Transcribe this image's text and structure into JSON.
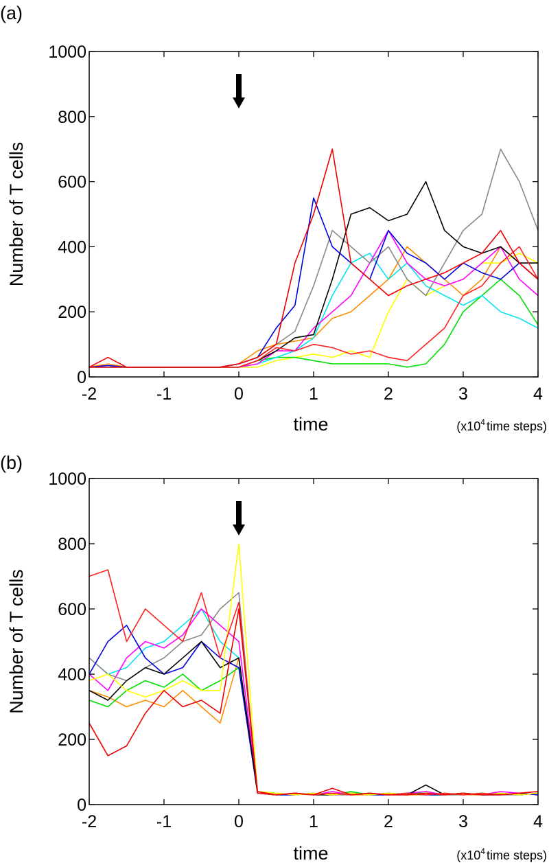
{
  "chart_data": [
    {
      "type": "line",
      "panel_label": "(a)",
      "xlabel": "time",
      "x_unit_prefix": "(x10",
      "x_unit_exp": "4",
      "x_unit_suffix": "time steps)",
      "ylabel": "Number of T cells",
      "xlim": [
        -2,
        4
      ],
      "ylim": [
        0,
        1000
      ],
      "xticks": [
        "-2",
        "-1",
        "0",
        "1",
        "2",
        "3",
        "4"
      ],
      "yticks": [
        "0",
        "200",
        "400",
        "600",
        "800",
        "1000"
      ],
      "arrow_at_x": 0,
      "grid": false,
      "x": [
        -2,
        -1.75,
        -1.5,
        -1.25,
        -1,
        -0.75,
        -0.5,
        -0.25,
        0,
        0.25,
        0.5,
        0.75,
        1,
        1.25,
        1.5,
        1.75,
        2,
        2.25,
        2.5,
        2.75,
        3,
        3.25,
        3.5,
        3.75,
        4
      ],
      "series": [
        {
          "color": "#ff8c00",
          "values": [
            30,
            40,
            30,
            30,
            30,
            30,
            30,
            30,
            40,
            80,
            100,
            110,
            120,
            180,
            200,
            250,
            300,
            400,
            350,
            300,
            250,
            300,
            400,
            350,
            300
          ]
        },
        {
          "color": "#ffff00",
          "values": [
            30,
            30,
            30,
            30,
            30,
            30,
            30,
            30,
            30,
            30,
            50,
            60,
            70,
            60,
            80,
            60,
            200,
            300,
            250,
            280,
            300,
            350,
            350,
            380,
            350
          ]
        },
        {
          "color": "#00dd00",
          "values": [
            30,
            30,
            30,
            30,
            30,
            30,
            30,
            30,
            30,
            50,
            60,
            60,
            50,
            40,
            40,
            40,
            40,
            30,
            40,
            100,
            200,
            250,
            300,
            250,
            160
          ]
        },
        {
          "color": "#00e5ee",
          "values": [
            30,
            30,
            30,
            30,
            30,
            30,
            30,
            30,
            30,
            40,
            60,
            80,
            120,
            250,
            350,
            380,
            300,
            350,
            280,
            250,
            220,
            250,
            200,
            180,
            150
          ]
        },
        {
          "color": "#ff00ff",
          "values": [
            30,
            30,
            30,
            30,
            30,
            30,
            30,
            30,
            30,
            40,
            80,
            80,
            150,
            200,
            250,
            350,
            450,
            350,
            300,
            280,
            300,
            350,
            400,
            300,
            250
          ]
        },
        {
          "color": "#888888",
          "values": [
            30,
            30,
            30,
            30,
            30,
            30,
            30,
            30,
            40,
            60,
            100,
            140,
            280,
            450,
            400,
            350,
            400,
            300,
            250,
            350,
            450,
            500,
            700,
            600,
            450
          ]
        },
        {
          "color": "#000000",
          "values": [
            30,
            30,
            30,
            30,
            30,
            30,
            30,
            30,
            30,
            50,
            80,
            120,
            130,
            300,
            500,
            520,
            480,
            500,
            600,
            450,
            400,
            380,
            400,
            350,
            350
          ]
        },
        {
          "color": "#0000dd",
          "values": [
            30,
            35,
            30,
            30,
            30,
            30,
            30,
            30,
            40,
            60,
            150,
            220,
            550,
            400,
            350,
            300,
            450,
            380,
            350,
            300,
            350,
            320,
            300,
            350,
            300
          ]
        },
        {
          "color": "#ff2020",
          "values": [
            30,
            30,
            30,
            30,
            30,
            30,
            30,
            30,
            30,
            50,
            90,
            80,
            100,
            90,
            70,
            80,
            60,
            50,
            100,
            150,
            250,
            280,
            350,
            400,
            300
          ]
        },
        {
          "color": "#ee0000",
          "values": [
            30,
            60,
            30,
            30,
            30,
            30,
            30,
            30,
            40,
            60,
            100,
            350,
            500,
            700,
            350,
            300,
            250,
            280,
            300,
            320,
            350,
            380,
            450,
            350,
            300
          ]
        }
      ]
    },
    {
      "type": "line",
      "panel_label": "(b)",
      "xlabel": "time",
      "x_unit_prefix": "(x10",
      "x_unit_exp": "4",
      "x_unit_suffix": "time steps)",
      "ylabel": "Number of T cells",
      "xlim": [
        -2,
        4
      ],
      "ylim": [
        0,
        1000
      ],
      "xticks": [
        "-2",
        "-1",
        "0",
        "1",
        "2",
        "3",
        "4"
      ],
      "yticks": [
        "0",
        "200",
        "400",
        "600",
        "800",
        "1000"
      ],
      "arrow_at_x": 0,
      "grid": false,
      "x": [
        -2,
        -1.75,
        -1.5,
        -1.25,
        -1,
        -0.75,
        -0.5,
        -0.25,
        0,
        0.25,
        0.5,
        0.75,
        1,
        1.25,
        1.5,
        1.75,
        2,
        2.25,
        2.5,
        2.75,
        3,
        3.25,
        3.5,
        3.75,
        4
      ],
      "series": [
        {
          "color": "#ff8c00",
          "values": [
            350,
            330,
            300,
            320,
            300,
            350,
            300,
            250,
            450,
            35,
            30,
            32,
            30,
            35,
            30,
            30,
            32,
            30,
            30,
            35,
            30,
            30,
            32,
            30,
            35
          ]
        },
        {
          "color": "#00dd00",
          "values": [
            320,
            300,
            350,
            380,
            360,
            400,
            350,
            380,
            420,
            40,
            35,
            30,
            35,
            30,
            40,
            30,
            35,
            30,
            40,
            30,
            35,
            30,
            35,
            30,
            35
          ]
        },
        {
          "color": "#00e5ee",
          "values": [
            450,
            400,
            420,
            480,
            500,
            550,
            600,
            500,
            450,
            35,
            30,
            35,
            30,
            30,
            35,
            30,
            30,
            35,
            30,
            30,
            35,
            30,
            30,
            35,
            30
          ]
        },
        {
          "color": "#ff00ff",
          "values": [
            400,
            350,
            450,
            500,
            480,
            520,
            600,
            550,
            500,
            40,
            30,
            35,
            30,
            40,
            30,
            35,
            30,
            35,
            40,
            30,
            35,
            30,
            40,
            35,
            30
          ]
        },
        {
          "color": "#888888",
          "values": [
            450,
            400,
            380,
            420,
            450,
            500,
            520,
            600,
            650,
            35,
            30,
            30,
            35,
            30,
            30,
            35,
            30,
            30,
            35,
            30,
            30,
            35,
            30,
            30,
            35
          ]
        },
        {
          "color": "#0000dd",
          "values": [
            400,
            500,
            550,
            450,
            400,
            420,
            500,
            450,
            420,
            35,
            30,
            30,
            35,
            30,
            35,
            30,
            30,
            35,
            30,
            30,
            35,
            30,
            30,
            35,
            30
          ]
        },
        {
          "color": "#000000",
          "values": [
            350,
            320,
            380,
            420,
            400,
            450,
            500,
            420,
            450,
            35,
            30,
            35,
            30,
            30,
            35,
            30,
            35,
            30,
            60,
            30,
            35,
            30,
            35,
            30,
            35
          ]
        },
        {
          "color": "#ffff00",
          "values": [
            380,
            400,
            350,
            330,
            350,
            380,
            350,
            350,
            800,
            40,
            35,
            30,
            35,
            30,
            35,
            30,
            35,
            30,
            35,
            30,
            35,
            30,
            35,
            30,
            35
          ]
        },
        {
          "color": "#ff2020",
          "values": [
            700,
            720,
            500,
            600,
            550,
            500,
            650,
            450,
            620,
            35,
            30,
            35,
            30,
            35,
            30,
            35,
            30,
            35,
            30,
            35,
            30,
            35,
            30,
            35,
            40
          ]
        },
        {
          "color": "#ee0000",
          "values": [
            250,
            150,
            180,
            280,
            350,
            300,
            320,
            280,
            600,
            40,
            30,
            35,
            30,
            50,
            30,
            35,
            30,
            30,
            35,
            30,
            35,
            30,
            30,
            35,
            40
          ]
        }
      ]
    }
  ]
}
